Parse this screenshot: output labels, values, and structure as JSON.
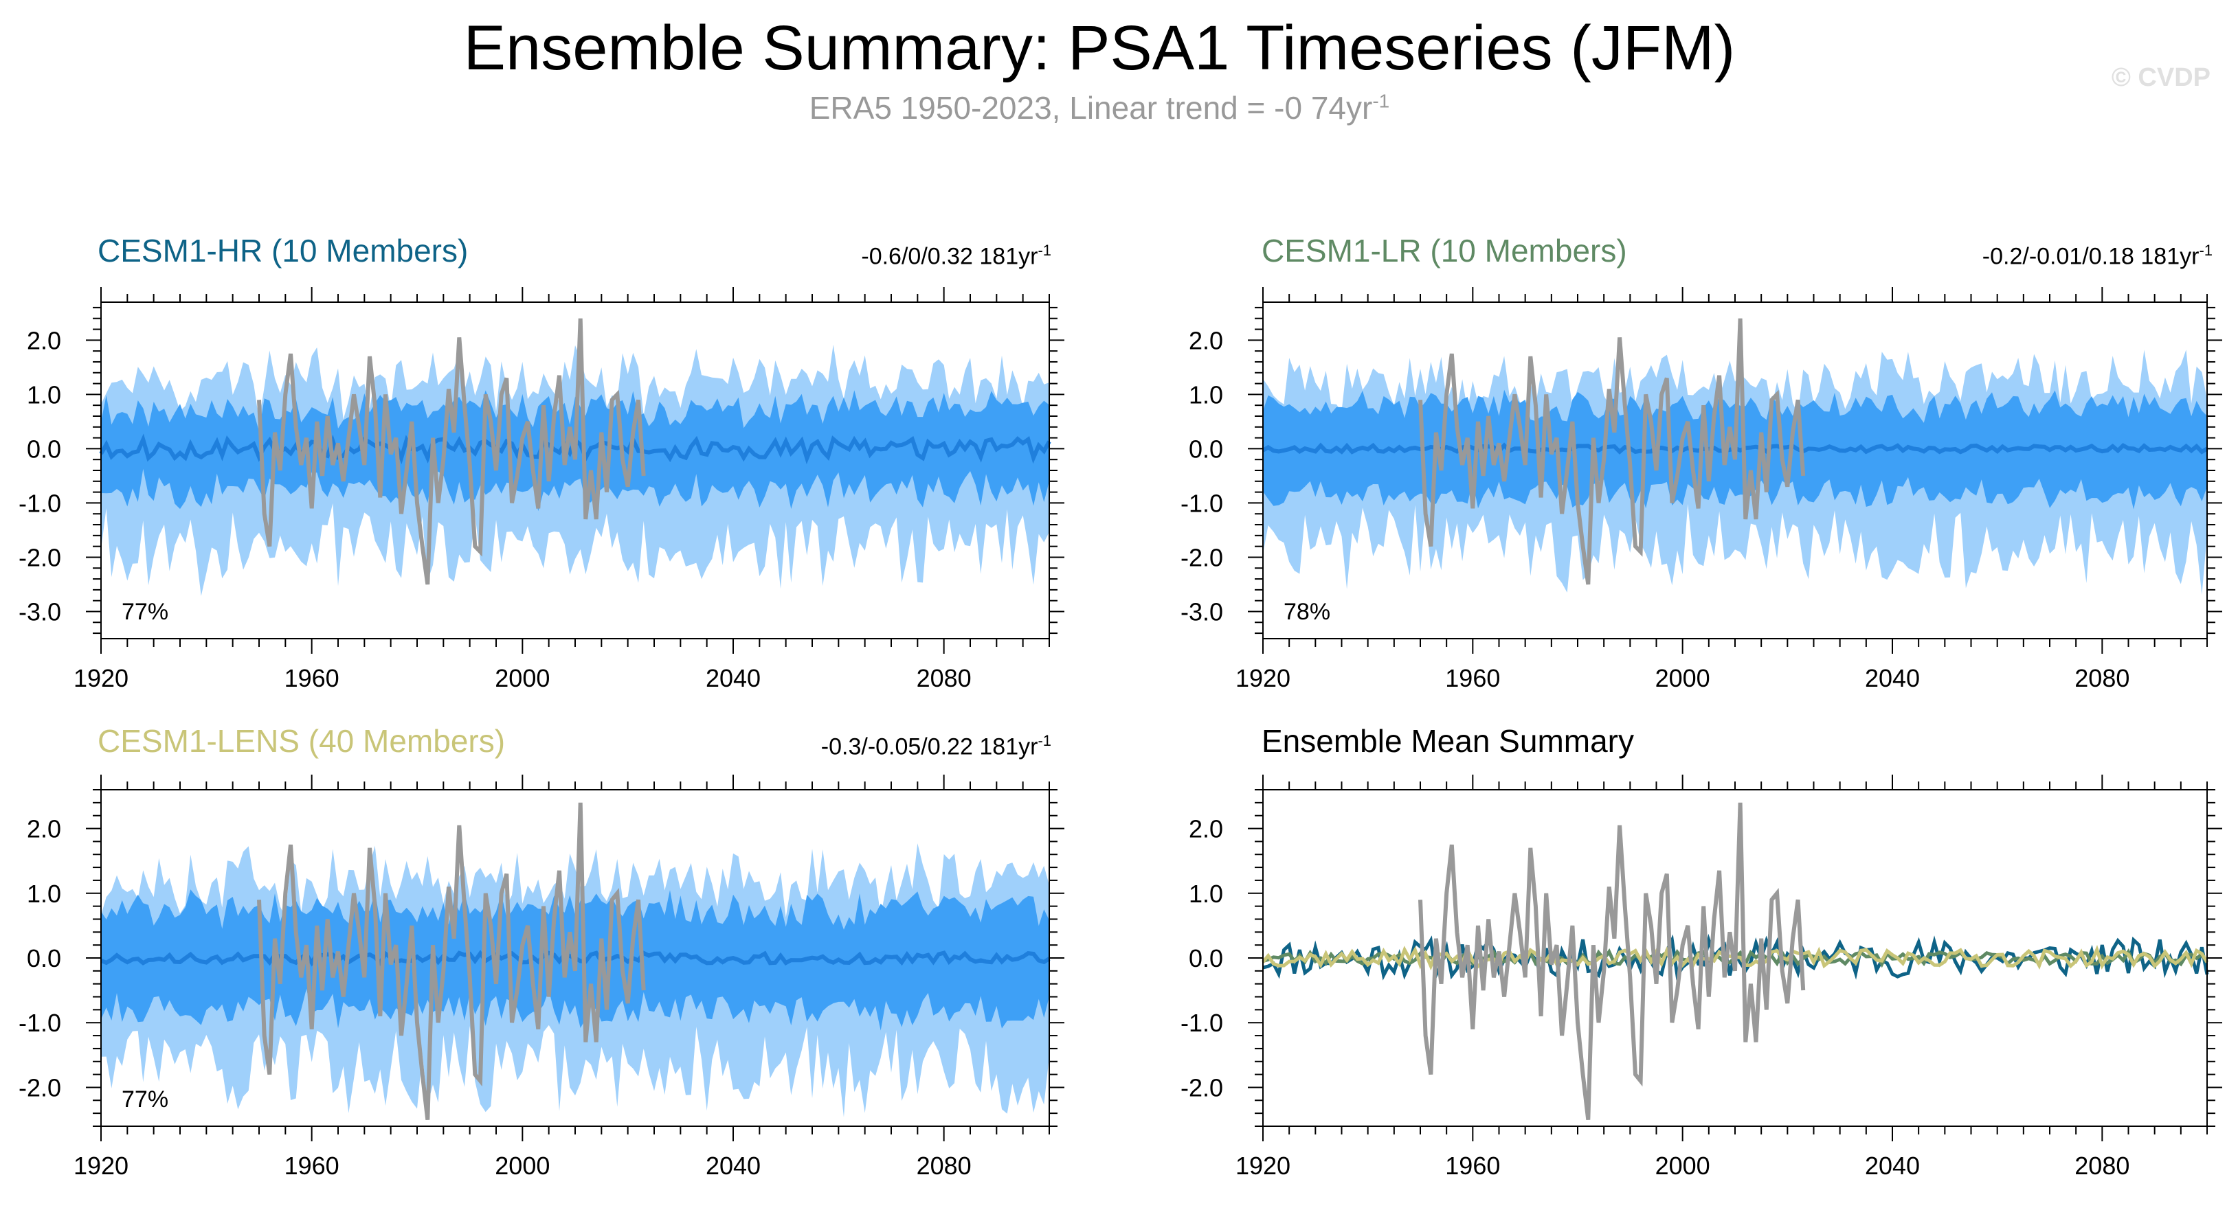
{
  "header": {
    "title": "Ensemble Summary: PSA1 Timeseries (JFM)",
    "subtitle": "ERA5 1950-2023, Linear trend = -0 74yr",
    "subtitle_sup": "-1",
    "watermark": "© CVDP"
  },
  "colors": {
    "band_outer": "#9fd0fb",
    "band_inner": "#3ea0f6",
    "ens_mean": "#1f7fdc",
    "obs": "#999999",
    "hr": "#0e6387",
    "lr": "#5f8a64",
    "lens": "#c9c578"
  },
  "chart_data": [
    {
      "type": "area",
      "title": "CESM1-HR (10 Members)",
      "stat": "-0.6/0/0.32 181yr",
      "stat_sup": "-1",
      "percent": "77%",
      "xlim": [
        1920,
        2100
      ],
      "ylim": [
        -3.5,
        2.7
      ],
      "xticks": [
        1920,
        1960,
        2000,
        2040,
        2080
      ],
      "yticks": [
        2.0,
        1.0,
        0.0,
        -1.0,
        -2.0,
        -3.0
      ],
      "ytick_labels": [
        "2.0",
        "1.0",
        "0.0",
        "-1.0",
        "-2.0",
        "-3.0"
      ],
      "seed": 11,
      "mean_amp": 0.18,
      "inner_w": 0.7,
      "outer_w": 1.5
    },
    {
      "type": "area",
      "title": "CESM1-LR (10 Members)",
      "stat": "-0.2/-0.01/0.18 181yr",
      "stat_sup": "-1",
      "percent": "78%",
      "xlim": [
        1920,
        2100
      ],
      "ylim": [
        -3.5,
        2.7
      ],
      "xticks": [
        1920,
        1960,
        2000,
        2040,
        2080
      ],
      "yticks": [
        2.0,
        1.0,
        0.0,
        -1.0,
        -2.0,
        -3.0
      ],
      "ytick_labels": [
        "2.0",
        "1.0",
        "0.0",
        "-1.0",
        "-2.0",
        "-3.0"
      ],
      "seed": 23,
      "mean_amp": 0.06,
      "inner_w": 0.75,
      "outer_w": 1.55
    },
    {
      "type": "area",
      "title": "CESM1-LENS (40 Members)",
      "stat": "-0.3/-0.05/0.22 181yr",
      "stat_sup": "-1",
      "percent": "77%",
      "xlim": [
        1920,
        2100
      ],
      "ylim": [
        -2.6,
        2.6
      ],
      "xticks": [
        1920,
        1960,
        2000,
        2040,
        2080
      ],
      "yticks": [
        2.0,
        1.0,
        0.0,
        -1.0,
        -2.0
      ],
      "ytick_labels": [
        "2.0",
        "1.0",
        "0.0",
        "-1.0",
        "-2.0"
      ],
      "seed": 37,
      "mean_amp": 0.08,
      "inner_w": 0.72,
      "outer_w": 1.45
    },
    {
      "type": "line",
      "title": "Ensemble Mean Summary",
      "xlim": [
        1920,
        2100
      ],
      "ylim": [
        -2.6,
        2.6
      ],
      "xticks": [
        1920,
        1960,
        2000,
        2040,
        2080
      ],
      "yticks": [
        2.0,
        1.0,
        0.0,
        -1.0,
        -2.0
      ],
      "ytick_labels": [
        "2.0",
        "1.0",
        "0.0",
        "-1.0",
        "-2.0"
      ],
      "series": [
        {
          "name": "CESM1-HR",
          "seed": 11,
          "amp": 0.18
        },
        {
          "name": "CESM1-LR",
          "seed": 23,
          "amp": 0.06
        },
        {
          "name": "CESM1-LENS",
          "seed": 37,
          "amp": 0.08
        }
      ]
    }
  ],
  "observations": {
    "x": [
      1950,
      1951,
      1952,
      1953,
      1954,
      1955,
      1956,
      1957,
      1958,
      1959,
      1960,
      1961,
      1962,
      1963,
      1964,
      1965,
      1966,
      1967,
      1968,
      1969,
      1970,
      1971,
      1972,
      1973,
      1974,
      1975,
      1976,
      1977,
      1978,
      1979,
      1980,
      1981,
      1982,
      1983,
      1984,
      1985,
      1986,
      1987,
      1988,
      1989,
      1990,
      1991,
      1992,
      1993,
      1994,
      1995,
      1996,
      1997,
      1998,
      1999,
      2000,
      2001,
      2002,
      2003,
      2004,
      2005,
      2006,
      2007,
      2008,
      2009,
      2010,
      2011,
      2012,
      2013,
      2014,
      2015,
      2016,
      2017,
      2018,
      2019,
      2020,
      2021,
      2022,
      2023
    ],
    "y": [
      0.9,
      -1.2,
      -1.8,
      0.3,
      -0.4,
      1.0,
      1.75,
      0.4,
      -0.3,
      0.2,
      -1.1,
      0.5,
      -0.5,
      0.6,
      -0.3,
      0.1,
      -0.6,
      0.2,
      1.0,
      0.4,
      -0.3,
      1.7,
      0.8,
      -0.9,
      1.0,
      -0.1,
      0.2,
      -1.2,
      -0.4,
      0.5,
      -1.0,
      -1.8,
      -2.5,
      0.2,
      -1.0,
      -0.2,
      1.1,
      0.3,
      2.05,
      0.8,
      -0.3,
      -1.8,
      -1.9,
      1.0,
      0.5,
      -0.4,
      1.0,
      1.3,
      -1.0,
      -0.5,
      0.2,
      0.5,
      -0.4,
      -1.1,
      0.8,
      -0.6,
      0.6,
      1.35,
      -0.3,
      0.4,
      -0.2,
      2.4,
      -1.3,
      -0.4,
      -1.3,
      0.3,
      -0.8,
      0.9,
      1.0,
      -0.2,
      -0.7,
      0.3,
      0.9,
      -0.5
    ]
  }
}
